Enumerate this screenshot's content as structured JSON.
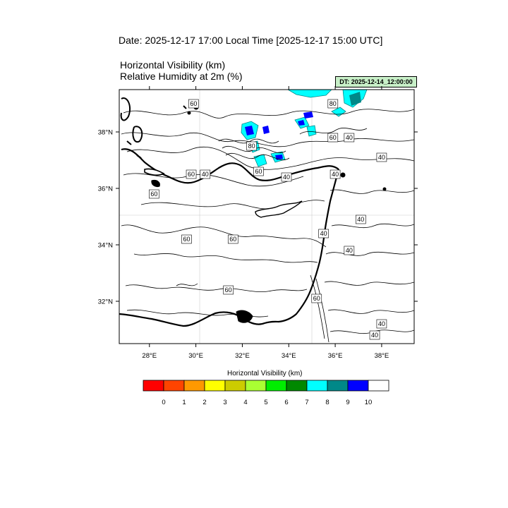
{
  "header": {
    "date_title": "Date: 2025-12-17  17:00 Local Time [2025-12-17  15:00 UTC]",
    "variable_1": "Horizontal Visibility   (km)",
    "variable_2": "Relative Humidity at 2m   (%)",
    "dt_badge": "DT: 2025-12-14_12:00:00"
  },
  "map": {
    "lon_range": [
      26.7,
      39.4
    ],
    "lat_range": [
      30.5,
      39.5
    ],
    "lon_ticks": [
      {
        "value": 28,
        "label": "28°E"
      },
      {
        "value": 30,
        "label": "30°E"
      },
      {
        "value": 32,
        "label": "32°E"
      },
      {
        "value": 34,
        "label": "34°E"
      },
      {
        "value": 36,
        "label": "36°E"
      },
      {
        "value": 38,
        "label": "38°E"
      }
    ],
    "lat_ticks": [
      {
        "value": 38,
        "label": "38°N"
      },
      {
        "value": 36,
        "label": "36°N"
      },
      {
        "value": 34,
        "label": "34°N"
      },
      {
        "value": 32,
        "label": "32°N"
      }
    ],
    "contour_labels": [
      {
        "text": "60",
        "lon": 29.9,
        "lat": 39.0
      },
      {
        "text": "80",
        "lon": 32.4,
        "lat": 37.5
      },
      {
        "text": "60",
        "lon": 32.7,
        "lat": 36.6
      },
      {
        "text": "60",
        "lon": 29.8,
        "lat": 36.5
      },
      {
        "text": "40",
        "lon": 30.4,
        "lat": 36.5
      },
      {
        "text": "40",
        "lon": 33.9,
        "lat": 36.4
      },
      {
        "text": "60",
        "lon": 28.2,
        "lat": 35.8
      },
      {
        "text": "60",
        "lon": 29.6,
        "lat": 34.2
      },
      {
        "text": "60",
        "lon": 31.6,
        "lat": 34.2
      },
      {
        "text": "60",
        "lon": 31.4,
        "lat": 32.4
      },
      {
        "text": "80",
        "lon": 35.9,
        "lat": 39.0
      },
      {
        "text": "60",
        "lon": 35.9,
        "lat": 37.8
      },
      {
        "text": "40",
        "lon": 36.6,
        "lat": 37.8
      },
      {
        "text": "40",
        "lon": 38.0,
        "lat": 37.1
      },
      {
        "text": "40",
        "lon": 36.0,
        "lat": 36.5
      },
      {
        "text": "40",
        "lon": 37.1,
        "lat": 34.9
      },
      {
        "text": "40",
        "lon": 35.5,
        "lat": 34.4
      },
      {
        "text": "40",
        "lon": 36.6,
        "lat": 33.8
      },
      {
        "text": "60",
        "lon": 35.2,
        "lat": 32.1
      },
      {
        "text": "40",
        "lon": 38.0,
        "lat": 31.2
      },
      {
        "text": "40",
        "lon": 37.7,
        "lat": 30.8
      }
    ]
  },
  "legend": {
    "title": "Horizontal Visibility  (km)",
    "colors": [
      "#ff0000",
      "#ff4400",
      "#ff9900",
      "#ffff00",
      "#cccc00",
      "#aaff33",
      "#00ee00",
      "#008800",
      "#00ffff",
      "#008888",
      "#0000ff",
      "#ffffff"
    ],
    "labels": [
      "0",
      "1",
      "2",
      "3",
      "4",
      "5",
      "6",
      "7",
      "8",
      "9",
      "10"
    ]
  }
}
